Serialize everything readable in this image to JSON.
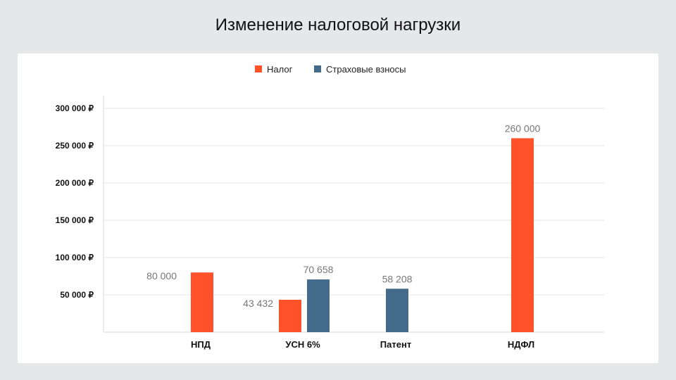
{
  "chart_data": {
    "type": "bar",
    "title": "Изменение налоговой нагрузки",
    "categories": [
      "НПД",
      "УСН 6%",
      "Патент",
      "НДФЛ"
    ],
    "series": [
      {
        "name": "Налог",
        "color": "#ff512a",
        "values": [
          80000,
          43432,
          null,
          260000
        ],
        "labels": [
          "80 000",
          "43 432",
          "",
          "260 000"
        ]
      },
      {
        "name": "Страховые взносы",
        "color": "#436a8a",
        "values": [
          null,
          70658,
          58208,
          null
        ],
        "labels": [
          "",
          "70 658",
          "58 208",
          ""
        ]
      }
    ],
    "yticks": [
      300000,
      250000,
      200000,
      150000,
      100000,
      50000
    ],
    "ytick_labels": [
      "300 000 ₽",
      "250 000 ₽",
      "200 000 ₽",
      "150 000 ₽",
      "100 000 ₽",
      "50 000 ₽"
    ],
    "ylim": [
      0,
      300000
    ],
    "grid": true,
    "legend_position": "top-center",
    "xlabel": "",
    "ylabel": ""
  }
}
